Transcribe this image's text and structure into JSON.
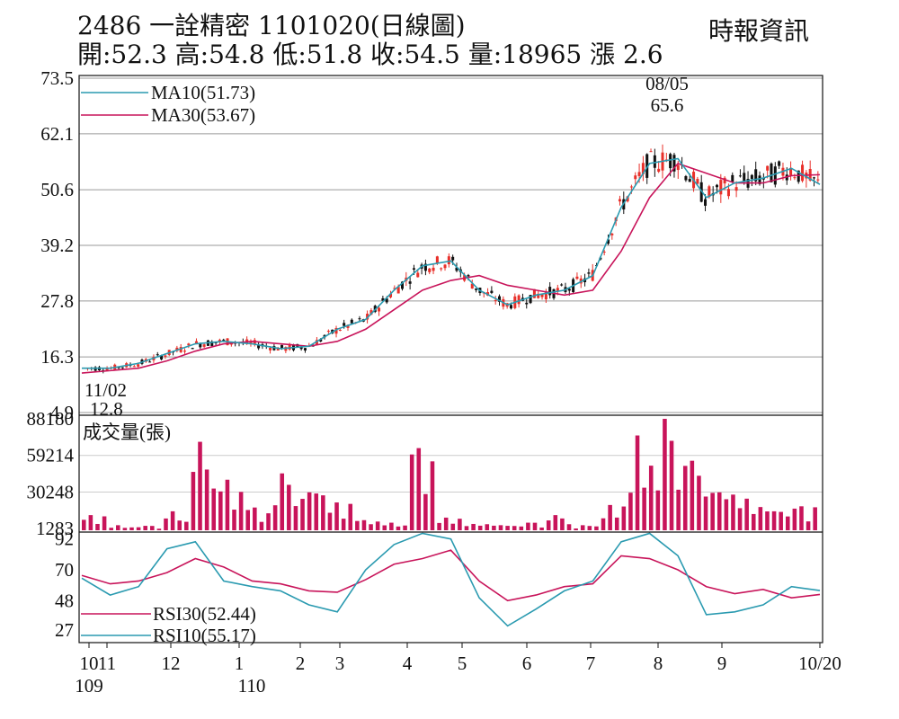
{
  "header": {
    "title": "2486  一詮精密 1101020(日線圖)",
    "stats": "開:52.3 高:54.8 低:51.8 收:54.5 量:18965 漲 2.6",
    "source": "時報資訊"
  },
  "colors": {
    "up": "#e8302a",
    "down": "#111111",
    "ma10": "#2a9ab0",
    "ma30": "#c8145a",
    "volume": "#c8145a",
    "rsi30": "#c8145a",
    "rsi10": "#2a9ab0",
    "grid": "#9a9a9a"
  },
  "chart_data": [
    {
      "type": "line",
      "subtype": "candlestick",
      "y_ticks": [
        "73.5",
        "62.1",
        "50.6",
        "39.2",
        "27.8",
        "16.3",
        "4.9"
      ],
      "ylim": [
        4.9,
        73.5
      ],
      "grid": true,
      "legend_position": "top-left",
      "series": [
        {
          "name": "MA10(51.73)",
          "values": [
            14,
            14,
            15,
            17,
            19,
            19.5,
            19,
            18,
            18.5,
            22,
            24,
            30,
            35,
            36,
            30,
            27,
            29,
            30,
            33,
            47,
            56,
            57,
            49,
            52,
            53,
            55,
            51.7
          ]
        },
        {
          "name": "MA30(53.67)",
          "values": [
            13,
            13.5,
            14,
            15.5,
            17.5,
            19,
            19.5,
            19,
            18.5,
            19.5,
            22,
            26,
            30,
            32,
            33,
            31,
            30,
            29,
            30,
            38,
            49,
            56,
            54,
            52,
            52,
            53.5,
            53.7
          ]
        }
      ],
      "annotations": [
        {
          "label": "08/05",
          "value": "65.6",
          "type": "high"
        },
        {
          "label": "11/02",
          "value": "12.8",
          "type": "low"
        }
      ]
    },
    {
      "type": "bar",
      "title": "成交量(張)",
      "y_ticks": [
        "88180",
        "59214",
        "30248",
        "1283"
      ],
      "ylim": [
        0,
        88180
      ],
      "values": [
        12000,
        4000,
        3500,
        15000,
        70000,
        40000,
        18000,
        45000,
        30000,
        22000,
        8000,
        6000,
        65000,
        10000,
        5000,
        4000,
        6000,
        12000,
        4000,
        20000,
        75000,
        88180,
        55000,
        30000,
        25000,
        15000,
        18965
      ]
    },
    {
      "type": "line",
      "y_ticks": [
        "92",
        "70",
        "48",
        "27"
      ],
      "ylim": [
        20,
        95
      ],
      "series": [
        {
          "name": "RSI30(52.44)",
          "values": [
            66,
            60,
            62,
            68,
            78,
            72,
            62,
            60,
            55,
            54,
            63,
            74,
            78,
            84,
            62,
            48,
            52,
            58,
            60,
            80,
            78,
            70,
            58,
            53,
            56,
            50,
            52.4
          ]
        },
        {
          "name": "RSI10(55.17)",
          "values": [
            64,
            52,
            58,
            85,
            90,
            62,
            58,
            55,
            45,
            40,
            70,
            88,
            96,
            92,
            50,
            30,
            42,
            55,
            62,
            90,
            96,
            80,
            38,
            40,
            45,
            58,
            55.2
          ]
        }
      ]
    }
  ],
  "x_axis": {
    "months": [
      "10",
      "11",
      "12",
      "1",
      "2",
      "3",
      "4",
      "5",
      "6",
      "7",
      "8",
      "9",
      "10/20"
    ],
    "years": [
      "109",
      "110"
    ]
  }
}
